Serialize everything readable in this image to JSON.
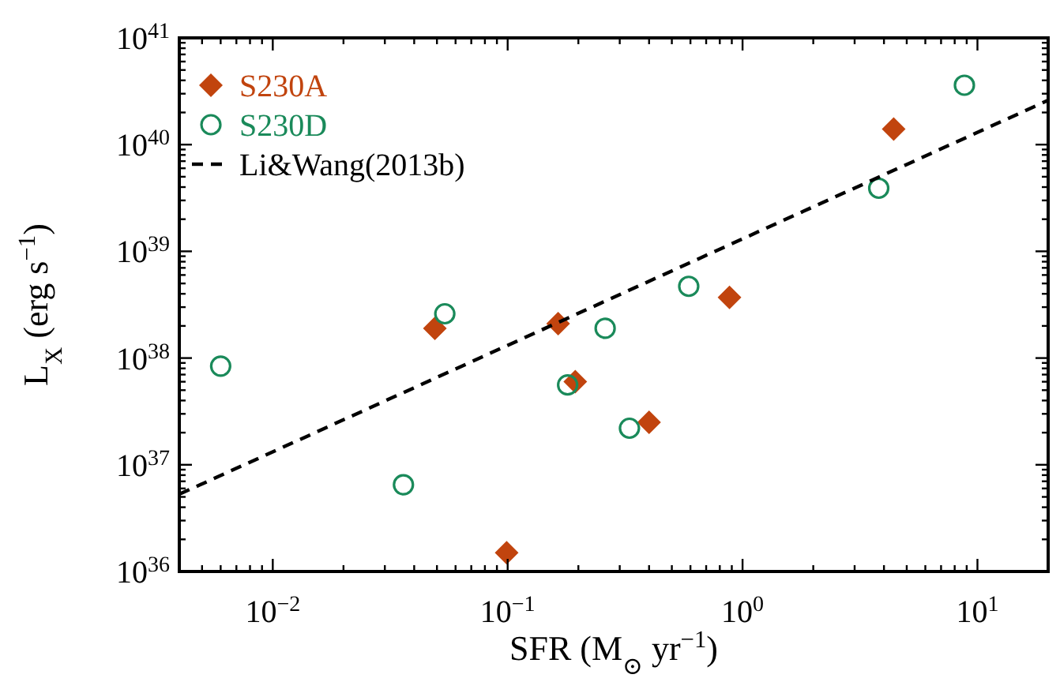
{
  "chart_data": {
    "type": "scatter",
    "xlabel": "SFR (M$_{⊙}$ yr$^{−1}$)",
    "ylabel": "L$_{X}$ (erg s$^{−1}$)",
    "log": "xy",
    "legend": "top left",
    "grid": false,
    "xlim": [
      0.004,
      20
    ],
    "ylim": [
      1e+36,
      1e+41
    ],
    "xticks": [
      {
        "value": 0.004,
        "label": null
      },
      {
        "value": 0.005,
        "label": null
      },
      {
        "value": 0.006,
        "label": null
      },
      {
        "value": 0.007,
        "label": null
      },
      {
        "value": 0.008,
        "label": null
      },
      {
        "value": 0.009,
        "label": null
      },
      {
        "value": 0.01,
        "label": "10$^{−2}$"
      },
      {
        "value": 0.02,
        "label": null
      },
      {
        "value": 0.03,
        "label": null
      },
      {
        "value": 0.04,
        "label": null
      },
      {
        "value": 0.05,
        "label": null
      },
      {
        "value": 0.06,
        "label": null
      },
      {
        "value": 0.07,
        "label": null
      },
      {
        "value": 0.08,
        "label": null
      },
      {
        "value": 0.09,
        "label": null
      },
      {
        "value": 0.1,
        "label": "10$^{−1}$"
      },
      {
        "value": 0.2,
        "label": null
      },
      {
        "value": 0.3,
        "label": null
      },
      {
        "value": 0.4,
        "label": null
      },
      {
        "value": 0.5,
        "label": null
      },
      {
        "value": 0.6,
        "label": null
      },
      {
        "value": 0.7,
        "label": null
      },
      {
        "value": 0.8,
        "label": null
      },
      {
        "value": 0.9,
        "label": null
      },
      {
        "value": 1,
        "label": "10$^{0}$"
      },
      {
        "value": 2,
        "label": null
      },
      {
        "value": 3,
        "label": null
      },
      {
        "value": 4,
        "label": null
      },
      {
        "value": 5,
        "label": null
      },
      {
        "value": 6,
        "label": null
      },
      {
        "value": 7,
        "label": null
      },
      {
        "value": 8,
        "label": null
      },
      {
        "value": 9,
        "label": null
      },
      {
        "value": 10,
        "label": "10$^{1}$"
      },
      {
        "value": 20,
        "label": null
      }
    ],
    "yticks": [
      {
        "value": 1e+36,
        "label": "10$^{36}$"
      },
      {
        "value": 2e+36,
        "label": null
      },
      {
        "value": 3e+36,
        "label": null
      },
      {
        "value": 4e+36,
        "label": null
      },
      {
        "value": 5e+36,
        "label": null
      },
      {
        "value": 6e+36,
        "label": null
      },
      {
        "value": 7e+36,
        "label": null
      },
      {
        "value": 8e+36,
        "label": null
      },
      {
        "value": 9e+36,
        "label": null
      },
      {
        "value": 1e+37,
        "label": "10$^{37}$"
      },
      {
        "value": 2e+37,
        "label": null
      },
      {
        "value": 3e+37,
        "label": null
      },
      {
        "value": 4e+37,
        "label": null
      },
      {
        "value": 5e+37,
        "label": null
      },
      {
        "value": 6e+37,
        "label": null
      },
      {
        "value": 7e+37,
        "label": null
      },
      {
        "value": 8e+37,
        "label": null
      },
      {
        "value": 9e+37,
        "label": null
      },
      {
        "value": 1e+38,
        "label": "10$^{38}$"
      },
      {
        "value": 2e+38,
        "label": null
      },
      {
        "value": 3e+38,
        "label": null
      },
      {
        "value": 4e+38,
        "label": null
      },
      {
        "value": 5e+38,
        "label": null
      },
      {
        "value": 6e+38,
        "label": null
      },
      {
        "value": 7e+38,
        "label": null
      },
      {
        "value": 8e+38,
        "label": null
      },
      {
        "value": 9e+38,
        "label": null
      },
      {
        "value": 1e+39,
        "label": "10$^{39}$"
      },
      {
        "value": 2e+39,
        "label": null
      },
      {
        "value": 3e+39,
        "label": null
      },
      {
        "value": 4e+39,
        "label": null
      },
      {
        "value": 5e+39,
        "label": null
      },
      {
        "value": 6e+39,
        "label": null
      },
      {
        "value": 7e+39,
        "label": null
      },
      {
        "value": 8e+39,
        "label": null
      },
      {
        "value": 9e+39,
        "label": null
      },
      {
        "value": 1e+40,
        "label": "10$^{40}$"
      },
      {
        "value": 2e+40,
        "label": null
      },
      {
        "value": 3e+40,
        "label": null
      },
      {
        "value": 4e+40,
        "label": null
      },
      {
        "value": 5e+40,
        "label": null
      },
      {
        "value": 6e+40,
        "label": null
      },
      {
        "value": 7e+40,
        "label": null
      },
      {
        "value": 8e+40,
        "label": null
      },
      {
        "value": 9e+40,
        "label": null
      },
      {
        "value": 1e+41,
        "label": "10$^{41}$"
      }
    ],
    "series": [
      {
        "name": "S230A",
        "marker": "diamond",
        "color": "#c1440e",
        "x": [
          0.049,
          0.164,
          0.194,
          0.4,
          0.099,
          0.88,
          4.4
        ],
        "values": [
          1.9e+38,
          2.1e+38,
          6e+37,
          2.5e+37,
          1.5e+36,
          3.7e+38,
          1.4e+40
        ]
      },
      {
        "name": "S230D",
        "marker": "circle",
        "color": "#1a8a5a",
        "x": [
          0.006,
          0.054,
          0.036,
          0.18,
          0.26,
          0.33,
          0.59,
          3.8,
          8.8
        ],
        "values": [
          8.4e+37,
          2.6e+38,
          6.5e+36,
          5.6e+37,
          1.9e+38,
          2.2e+37,
          4.7e+38,
          3.9e+39,
          3.6e+40
        ]
      },
      {
        "name": "Li&Wang(2013b)",
        "type": "line",
        "line_style": "dashed",
        "marker": "none",
        "color": "#000000",
        "x": [
          0.004,
          20
        ],
        "values": [
          5.3e+36,
          2.6e+40
        ]
      }
    ]
  }
}
